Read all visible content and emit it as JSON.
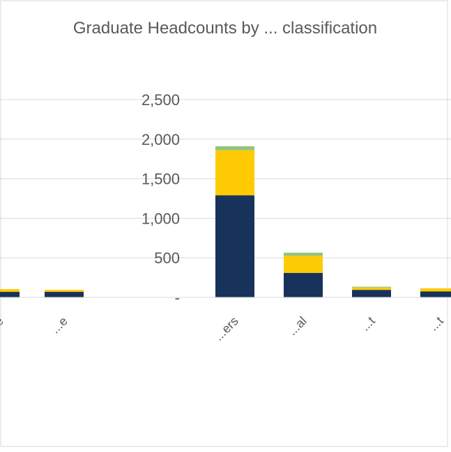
{
  "chart_data": {
    "type": "bar",
    "stacked": true,
    "title": "Graduate Headcounts by ... classification",
    "categories": [
      "...e",
      "...e",
      "...ers",
      "...al",
      "...t",
      "...t"
    ],
    "series": [
      {
        "values": [
          70,
          70,
          1290,
          310,
          95,
          75
        ]
      },
      {
        "values": [
          35,
          25,
          570,
          215,
          30,
          40
        ]
      },
      {
        "values": [
          0,
          0,
          50,
          40,
          10,
          0
        ]
      }
    ],
    "colors": [
      "#17325b",
      "#ffcb05",
      "#93c47d"
    ],
    "ylim": [
      0,
      2500
    ],
    "yticks": [
      "-",
      "500",
      "1,000",
      "1,500",
      "2,000",
      "2,500"
    ],
    "grid": true,
    "xlabel": "",
    "ylabel": ""
  }
}
